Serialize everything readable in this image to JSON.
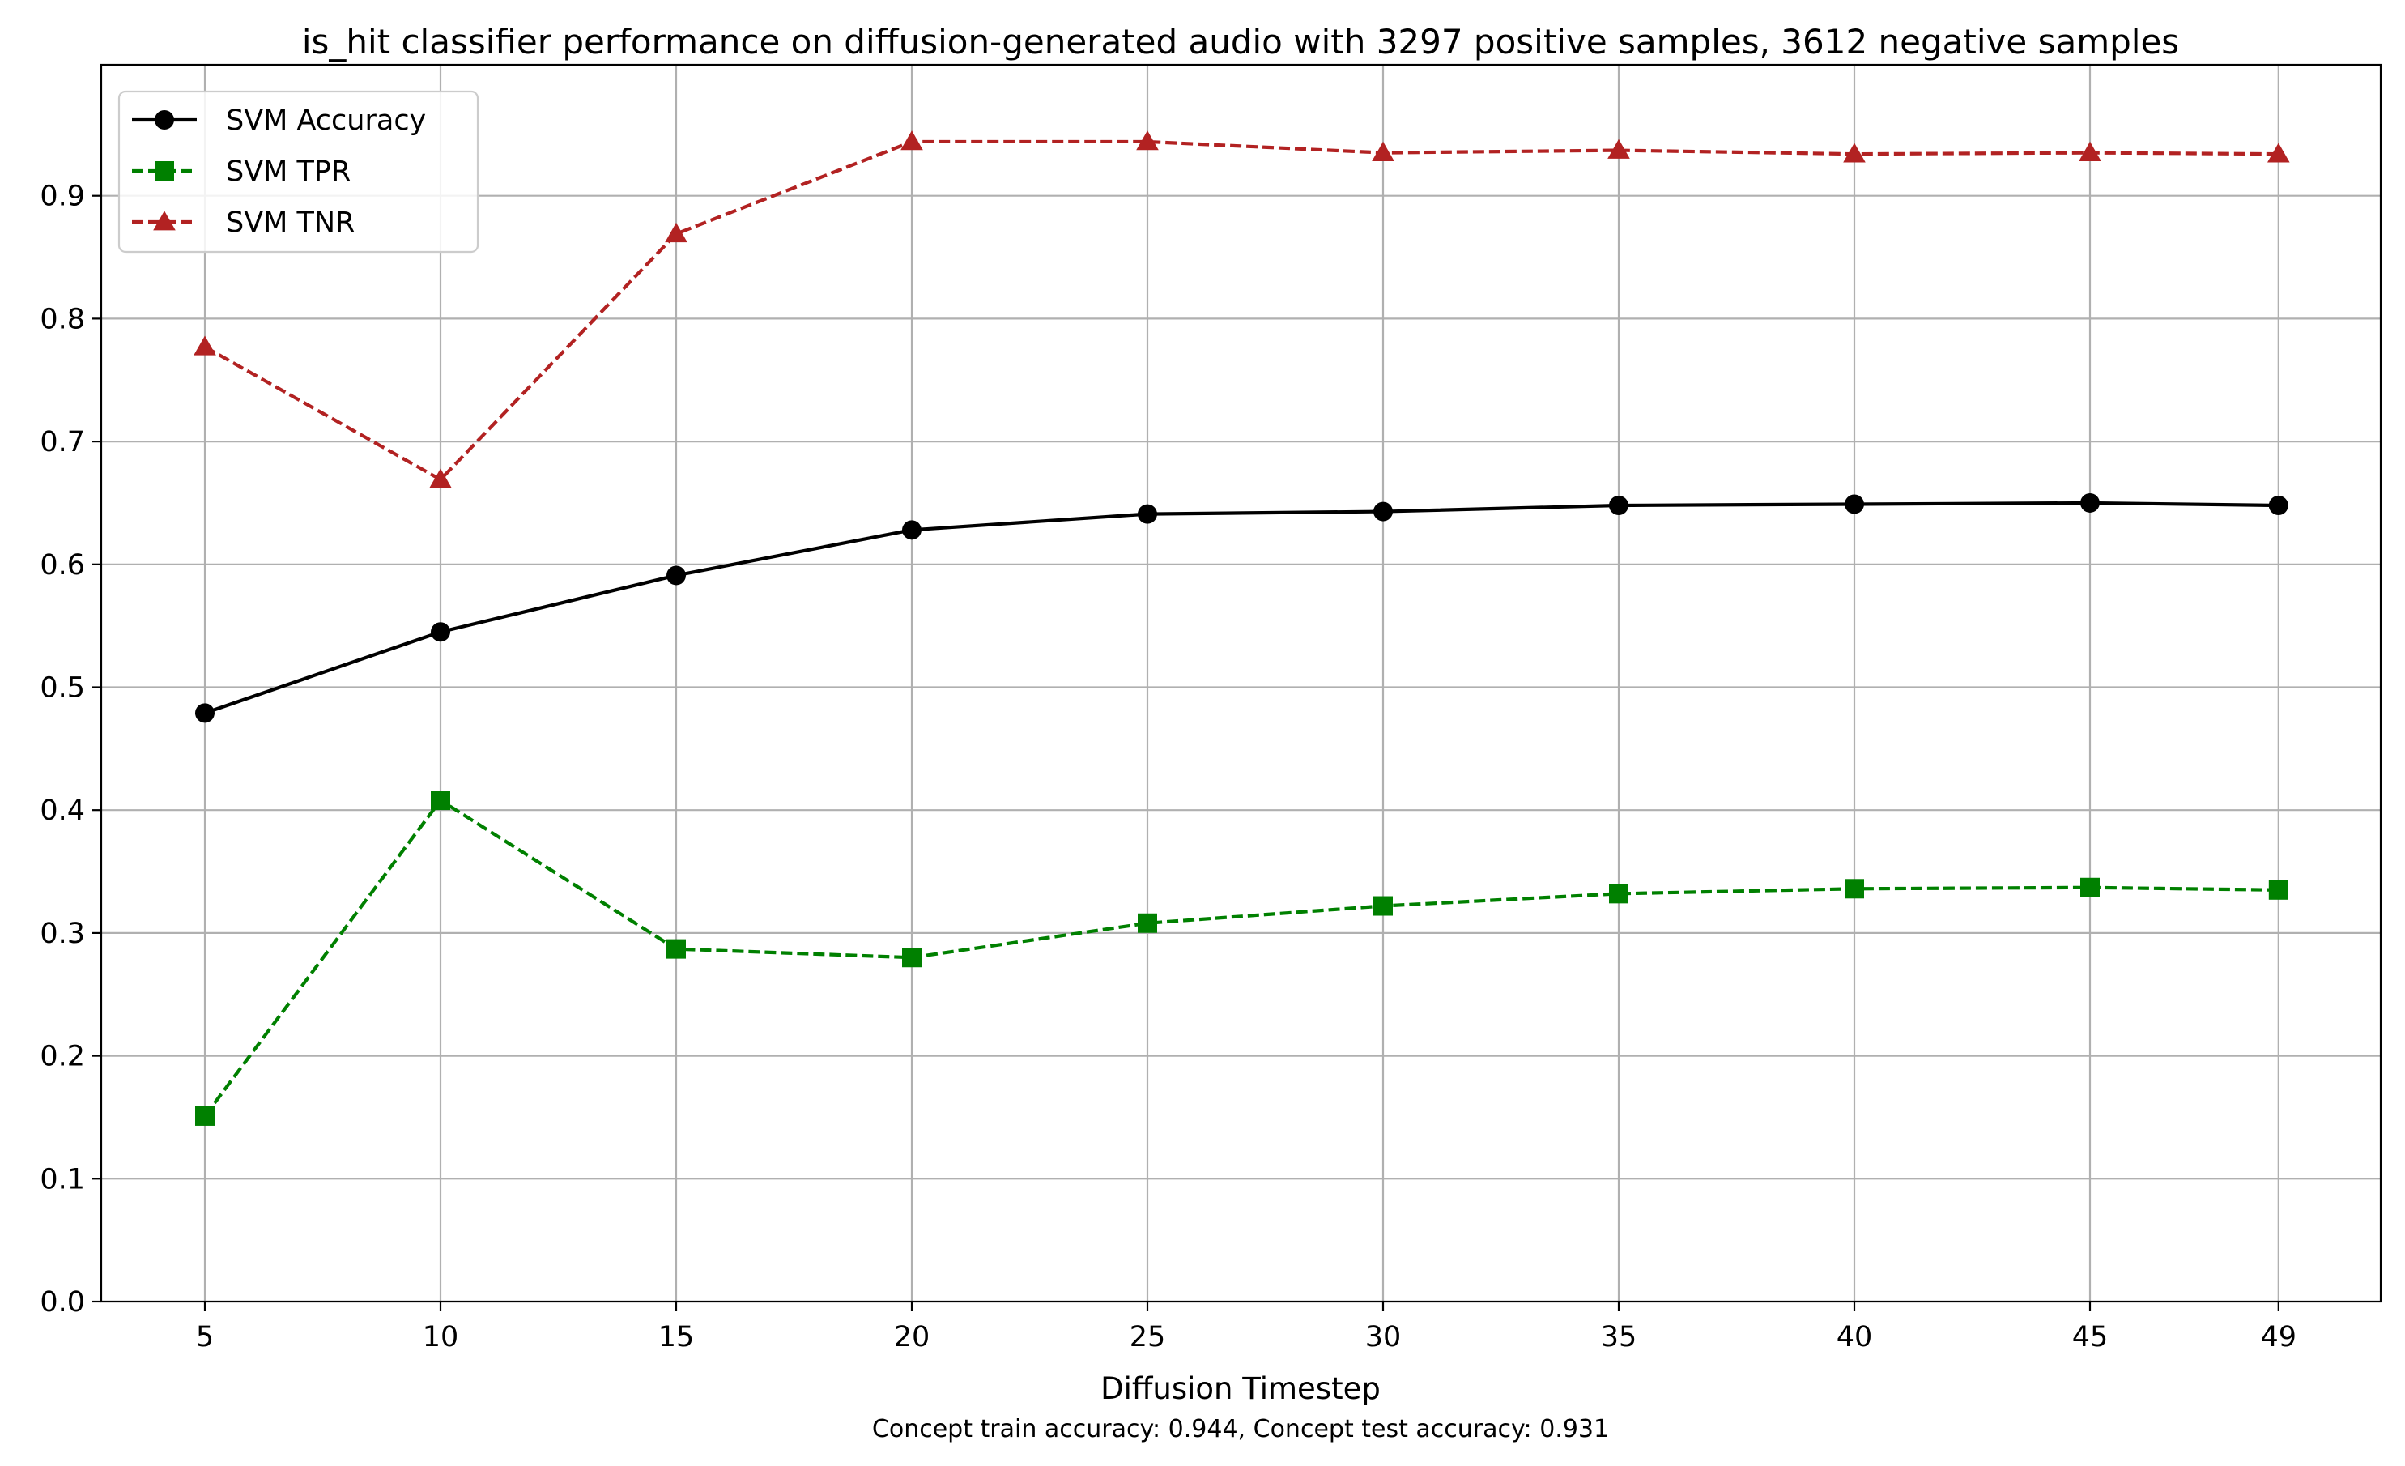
{
  "chart_data": {
    "type": "line",
    "title": "is_hit classifier performance on diffusion-generated audio with 3297 positive samples, 3612 negative samples",
    "xlabel": "Diffusion Timestep",
    "ylabel": "",
    "footnote": "Concept train accuracy: 0.944, Concept test accuracy: 0.931",
    "x": [
      5,
      10,
      15,
      20,
      25,
      30,
      35,
      40,
      45,
      49
    ],
    "x_ticks": [
      "5",
      "10",
      "15",
      "20",
      "25",
      "30",
      "35",
      "40",
      "45",
      "49"
    ],
    "y_ticks": [
      "0.0",
      "0.1",
      "0.2",
      "0.3",
      "0.4",
      "0.5",
      "0.6",
      "0.7",
      "0.8",
      "0.9"
    ],
    "ylim": [
      0,
      1.0
    ],
    "grid": true,
    "legend_position": "top-left",
    "series": [
      {
        "name": "SVM Accuracy",
        "values": [
          0.479,
          0.545,
          0.591,
          0.628,
          0.641,
          0.643,
          0.648,
          0.649,
          0.65,
          0.648
        ],
        "color": "#000000",
        "line_style": "solid",
        "marker": "circle"
      },
      {
        "name": "SVM TPR",
        "values": [
          0.151,
          0.408,
          0.287,
          0.28,
          0.308,
          0.322,
          0.332,
          0.336,
          0.337,
          0.335
        ],
        "color": "#008000",
        "line_style": "dashed",
        "marker": "square"
      },
      {
        "name": "SVM TNR",
        "values": [
          0.777,
          0.669,
          0.869,
          0.944,
          0.944,
          0.935,
          0.937,
          0.934,
          0.935,
          0.934
        ],
        "color": "#b22222",
        "line_style": "dashed",
        "marker": "triangle"
      }
    ]
  }
}
